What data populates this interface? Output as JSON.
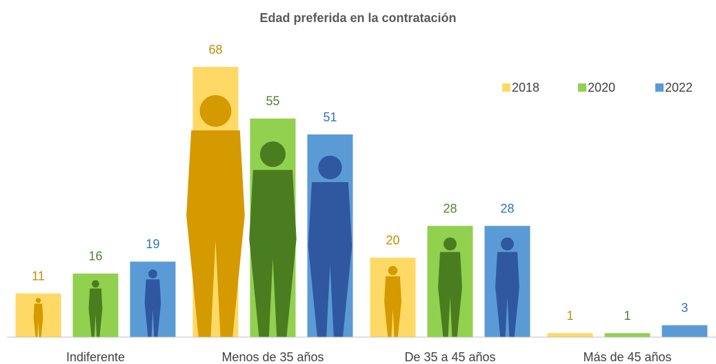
{
  "chart_data": {
    "type": "bar",
    "title": "Edad preferida en la contratación",
    "categories": [
      "Indiferente",
      "Menos de 35 años",
      "De 35 a 45 años",
      "Más de 45 años"
    ],
    "series": [
      {
        "name": "2018",
        "color": "#ffd966",
        "values": [
          11,
          68,
          20,
          1
        ]
      },
      {
        "name": "2020",
        "color": "#92d050",
        "values": [
          16,
          55,
          28,
          1
        ]
      },
      {
        "name": "2022",
        "color": "#5b9bd5",
        "values": [
          19,
          51,
          28,
          3
        ]
      }
    ],
    "legend": "top-right"
  }
}
